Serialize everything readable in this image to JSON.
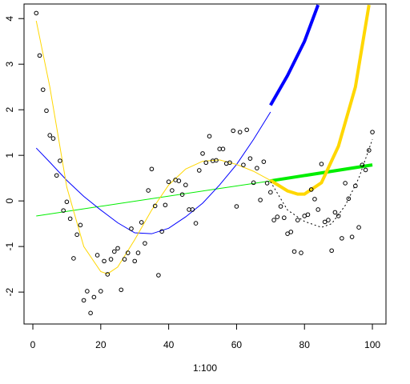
{
  "chart_data": {
    "type": "scatter",
    "x_label": "1:100",
    "xlim": [
      -2.6,
      104
    ],
    "ylim": [
      -2.7,
      4.32
    ],
    "xticks": [
      0,
      20,
      40,
      60,
      80,
      100
    ],
    "yticks": [
      -2,
      -1,
      0,
      1,
      2,
      3,
      4
    ],
    "point_color": "#000000",
    "x": [
      1,
      2,
      3,
      4,
      5,
      6,
      7,
      8,
      9,
      10,
      11,
      12,
      13,
      14,
      15,
      16,
      17,
      18,
      19,
      20,
      21,
      22,
      23,
      24,
      25,
      26,
      27,
      28,
      29,
      30,
      31,
      32,
      33,
      34,
      35,
      36,
      37,
      38,
      39,
      40,
      41,
      42,
      43,
      44,
      45,
      46,
      47,
      48,
      49,
      50,
      51,
      52,
      53,
      54,
      55,
      56,
      57,
      58,
      59,
      60,
      61,
      62,
      63,
      64,
      65,
      66,
      67,
      68,
      69,
      70,
      71,
      72,
      73,
      74,
      75,
      76,
      77,
      78,
      79,
      80,
      81,
      82,
      83,
      84,
      85,
      86,
      87,
      88,
      89,
      90,
      91,
      92,
      93,
      94,
      95,
      96,
      97,
      98,
      99,
      100
    ],
    "values": [
      4.12,
      3.19,
      2.44,
      1.98,
      1.44,
      1.37,
      0.56,
      0.88,
      -0.21,
      -0.02,
      -0.39,
      -1.26,
      -0.74,
      -0.53,
      -2.18,
      -1.98,
      -2.46,
      -2.11,
      -1.19,
      -1.98,
      -1.32,
      -1.61,
      -1.28,
      -1.11,
      -1.04,
      -1.95,
      -1.28,
      -1.14,
      -0.61,
      -1.32,
      -1.14,
      -0.47,
      -0.93,
      0.23,
      0.7,
      -0.11,
      -1.63,
      -0.67,
      -0.09,
      0.42,
      0.23,
      0.46,
      0.44,
      0.14,
      0.35,
      -0.19,
      -0.19,
      -0.49,
      0.67,
      1.04,
      0.84,
      1.42,
      0.88,
      0.89,
      1.14,
      1.14,
      0.82,
      0.84,
      1.54,
      -0.12,
      1.51,
      0.79,
      1.56,
      0.93,
      0.4,
      0.72,
      0.02,
      0.86,
      0.39,
      0.19,
      -0.42,
      -0.35,
      -0.12,
      -0.37,
      -0.72,
      -0.68,
      -1.11,
      -0.42,
      -1.14,
      -0.33,
      -0.3,
      0.25,
      0.04,
      -0.19,
      0.81,
      -0.46,
      -0.42,
      -1.09,
      -0.25,
      -0.33,
      -0.82,
      0.39,
      0.05,
      -0.79,
      0.33,
      -0.58,
      0.79,
      0.68,
      1.11,
      1.51
    ],
    "lines": [
      {
        "color": "#00ee00",
        "width": 1,
        "x": [
          1,
          70
        ],
        "values": [
          -0.33,
          0.44
        ]
      },
      {
        "color": "#00ee00",
        "width": 4,
        "x": [
          70,
          100
        ],
        "values": [
          0.44,
          0.79
        ]
      },
      {
        "color": "#0000ff",
        "width": 1,
        "x": [
          1,
          5,
          10,
          15,
          20,
          25,
          30,
          35,
          40,
          45,
          50,
          55,
          60,
          65,
          70
        ],
        "values": [
          1.16,
          0.85,
          0.45,
          0.1,
          -0.2,
          -0.48,
          -0.7,
          -0.72,
          -0.6,
          -0.35,
          -0.05,
          0.35,
          0.8,
          1.35,
          1.95
        ]
      },
      {
        "color": "#0000ff",
        "width": 4,
        "x": [
          70,
          75,
          80,
          84
        ],
        "values": [
          2.1,
          2.75,
          3.5,
          4.3
        ]
      },
      {
        "color": "#ffd700",
        "width": 1,
        "x": [
          1,
          5,
          10,
          15,
          20,
          22,
          25,
          30,
          35,
          40,
          45,
          50,
          55,
          60,
          65,
          70
        ],
        "values": [
          3.95,
          2.5,
          0.3,
          -1.0,
          -1.55,
          -1.6,
          -1.45,
          -0.85,
          -0.2,
          0.35,
          0.7,
          0.87,
          0.9,
          0.8,
          0.65,
          0.45
        ]
      },
      {
        "color": "#ffd700",
        "width": 4,
        "x": [
          70,
          75,
          78,
          80,
          85,
          90,
          95,
          99
        ],
        "values": [
          0.45,
          0.22,
          0.15,
          0.15,
          0.4,
          1.2,
          2.5,
          4.3
        ]
      },
      {
        "color": "#000000",
        "width": 1,
        "dash": true,
        "x": [
          70,
          75,
          80,
          85,
          88,
          92,
          96,
          100
        ],
        "values": [
          0.42,
          -0.2,
          -0.45,
          -0.58,
          -0.5,
          -0.1,
          0.5,
          1.35
        ]
      }
    ]
  }
}
